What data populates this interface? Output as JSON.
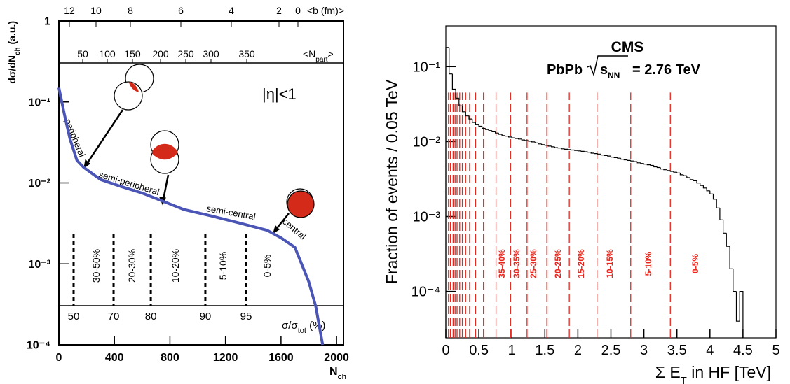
{
  "chart_data": [
    {
      "type": "line",
      "x_label_parts": [
        "N",
        "ch"
      ],
      "y_label_parts": [
        "dσ/dN",
        "ch",
        " (a.u.)"
      ],
      "annotation": "|η|<1",
      "region_labels": [
        "peripheral",
        "semi-peripheral",
        "semi-central",
        "central"
      ],
      "x": [
        0,
        40,
        80,
        130,
        180,
        300,
        450,
        600,
        900,
        1100,
        1300,
        1500,
        1600,
        1700,
        1800,
        1850,
        1900
      ],
      "series": [
        {
          "color": "#4b55b5",
          "values": [
            0.15,
            0.07,
            0.035,
            0.019,
            0.0155,
            0.011,
            0.009,
            0.0075,
            0.0047,
            0.0039,
            0.0032,
            0.0026,
            0.0021,
            0.0016,
            0.0006,
            0.0003,
            0.0001
          ]
        }
      ],
      "xlim": [
        0,
        2050
      ],
      "ylim": [
        0.0001,
        1
      ],
      "log_y": true,
      "xticks": [
        0,
        400,
        800,
        1200,
        1600,
        2000
      ],
      "yticks": [
        {
          "value": 0.0001,
          "label": "10⁻⁴"
        },
        {
          "value": 0.001,
          "label": "10⁻³"
        },
        {
          "value": 0.01,
          "label": "10⁻²"
        },
        {
          "value": 0.1,
          "label": "10⁻¹"
        },
        1
      ],
      "npart_axis": {
        "label_parts": [
          "<N",
          "part",
          ">"
        ],
        "ticks": [
          50,
          100,
          150,
          200,
          250,
          300,
          350
        ]
      },
      "b_axis": {
        "label": "<b (fm)>",
        "ticks": [
          12,
          10,
          8,
          6,
          4,
          2,
          0
        ]
      },
      "centrality_axis": {
        "label_parts": [
          "σ/σ",
          "tot",
          " (%)"
        ],
        "ticks": [
          50,
          70,
          80,
          90,
          95
        ],
        "cut_x": [
          106,
          394,
          662,
          1055,
          1348
        ],
        "bin_labels": [
          "30-50%",
          "20-30%",
          "10-20%",
          "5-10%",
          "0-5%"
        ]
      }
    },
    {
      "type": "histogram",
      "title": "CMS",
      "subtitle_parts": [
        "PbPb",
        "s",
        "NN",
        "= 2.76 TeV"
      ],
      "x_label_parts": [
        "Σ E",
        "T",
        " in HF [TeV]"
      ],
      "y_label": "Fraction of events / 0.05 TeV",
      "color": "#000000",
      "bins": [
        0,
        0.05,
        0.1,
        0.15,
        0.2,
        0.25,
        0.3,
        0.35,
        0.4,
        0.45,
        0.5,
        0.55,
        0.6,
        0.65,
        0.7,
        0.75,
        0.8,
        0.85,
        0.9,
        0.95,
        1,
        1.05,
        1.1,
        1.15,
        1.2,
        1.25,
        1.3,
        1.35,
        1.4,
        1.45,
        1.5,
        1.55,
        1.6,
        1.65,
        1.7,
        1.75,
        1.8,
        1.85,
        1.9,
        1.95,
        2,
        2.05,
        2.1,
        2.15,
        2.2,
        2.25,
        2.3,
        2.35,
        2.4,
        2.45,
        2.5,
        2.55,
        2.6,
        2.65,
        2.7,
        2.75,
        2.8,
        2.85,
        2.9,
        2.95,
        3,
        3.05,
        3.1,
        3.15,
        3.2,
        3.25,
        3.3,
        3.35,
        3.4,
        3.45,
        3.5,
        3.55,
        3.6,
        3.65,
        3.7,
        3.75,
        3.8,
        3.85,
        3.9,
        3.95,
        4,
        4.05,
        4.1,
        4.15,
        4.2,
        4.25,
        4.3,
        4.35,
        4.4,
        4.45,
        4.5
      ],
      "values": [
        0.18,
        0.08,
        0.05,
        0.038,
        0.03,
        0.025,
        0.022,
        0.02,
        0.018,
        0.017,
        0.016,
        0.015,
        0.0145,
        0.014,
        0.0135,
        0.013,
        0.0125,
        0.012,
        0.0118,
        0.0115,
        0.0112,
        0.011,
        0.0108,
        0.0105,
        0.0103,
        0.0101,
        0.0099,
        0.0096,
        0.0093,
        0.0091,
        0.0089,
        0.0087,
        0.0085,
        0.0083,
        0.0082,
        0.008,
        0.0079,
        0.0078,
        0.0077,
        0.0076,
        0.0075,
        0.0074,
        0.0073,
        0.0072,
        0.007,
        0.0069,
        0.0068,
        0.0066,
        0.0065,
        0.0064,
        0.0062,
        0.0061,
        0.006,
        0.0058,
        0.0057,
        0.0056,
        0.0055,
        0.0054,
        0.0052,
        0.0051,
        0.005,
        0.0049,
        0.0048,
        0.0046,
        0.0045,
        0.0043,
        0.0042,
        0.0041,
        0.004,
        0.0039,
        0.0038,
        0.0036,
        0.0035,
        0.0033,
        0.0031,
        0.003,
        0.0028,
        0.0026,
        0.0024,
        0.0022,
        0.002,
        0.0017,
        0.0013,
        0.0009,
        0.0006,
        0.0004,
        0.0002,
        0.0001,
        4e-05,
        0.0001
      ],
      "xlim": [
        0,
        5
      ],
      "ylim": [
        2.4e-05,
        0.35
      ],
      "log_y": true,
      "xticks": [
        0,
        0.5,
        1,
        1.5,
        2,
        2.5,
        3,
        3.5,
        4,
        4.5,
        5
      ],
      "yticks": [
        {
          "value": 0.0001,
          "label": "10⁻⁴"
        },
        {
          "value": 0.001,
          "label": "10⁻³"
        },
        {
          "value": 0.01,
          "label": "10⁻²"
        },
        {
          "value": 0.1,
          "label": "10⁻¹"
        }
      ],
      "cut_lines": {
        "color": "#e8261c",
        "x": [
          0.04,
          0.07,
          0.11,
          0.14,
          0.17,
          0.21,
          0.25,
          0.3,
          0.36,
          0.45,
          0.57,
          0.76,
          0.98,
          1.23,
          1.53,
          1.87,
          2.29,
          2.8,
          3.4
        ]
      },
      "centrality_labels": [
        "35-40%",
        "30-35%",
        "25-30%",
        "20-25%",
        "15-20%",
        "10-15%",
        "5-10%",
        "0-5%"
      ]
    }
  ]
}
